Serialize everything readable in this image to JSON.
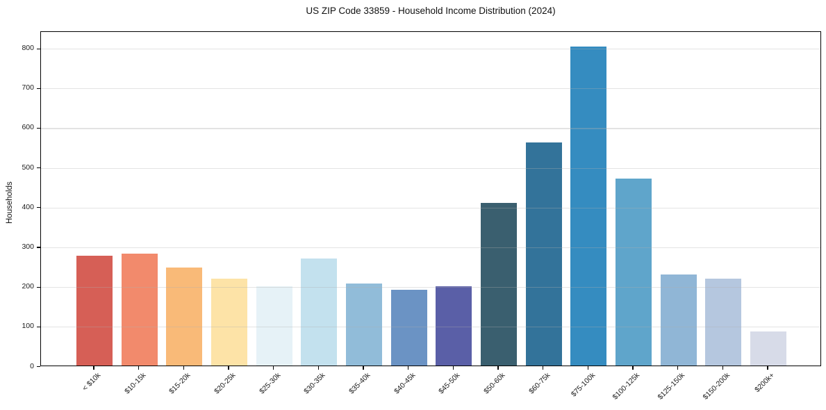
{
  "chart_data": {
    "type": "bar",
    "title": "US ZIP Code 33859 - Household Income Distribution (2024)",
    "xlabel": "",
    "ylabel": "Households",
    "categories": [
      "< $10k",
      "$10-15k",
      "$15-20k",
      "$20-25k",
      "$25-30k",
      "$30-35k",
      "$35-40k",
      "$40-45k",
      "$45-50k",
      "$50-60k",
      "$60-75k",
      "$75-100k",
      "$100-125k",
      "$125-150k",
      "$150-200k",
      "$200k+"
    ],
    "values": [
      276,
      281,
      246,
      219,
      199,
      270,
      207,
      190,
      199,
      410,
      562,
      803,
      470,
      229,
      218,
      86
    ],
    "bar_colors": [
      "#d65f56",
      "#f28a6c",
      "#f9ba78",
      "#fde3a7",
      "#e6f2f7",
      "#c3e1ee",
      "#91bcd9",
      "#6b93c4",
      "#5a5fa7",
      "#3a5f6f",
      "#33739a",
      "#358cc0",
      "#5fa5cb",
      "#90b6d6",
      "#b5c7df",
      "#d7dbe8"
    ],
    "yticks": [
      0,
      100,
      200,
      300,
      400,
      500,
      600,
      700,
      800
    ],
    "ylim": [
      0,
      843
    ],
    "grid": "horizontal-only",
    "legend": "none",
    "background_color": "#ffffff",
    "spine_color": "#000000"
  }
}
